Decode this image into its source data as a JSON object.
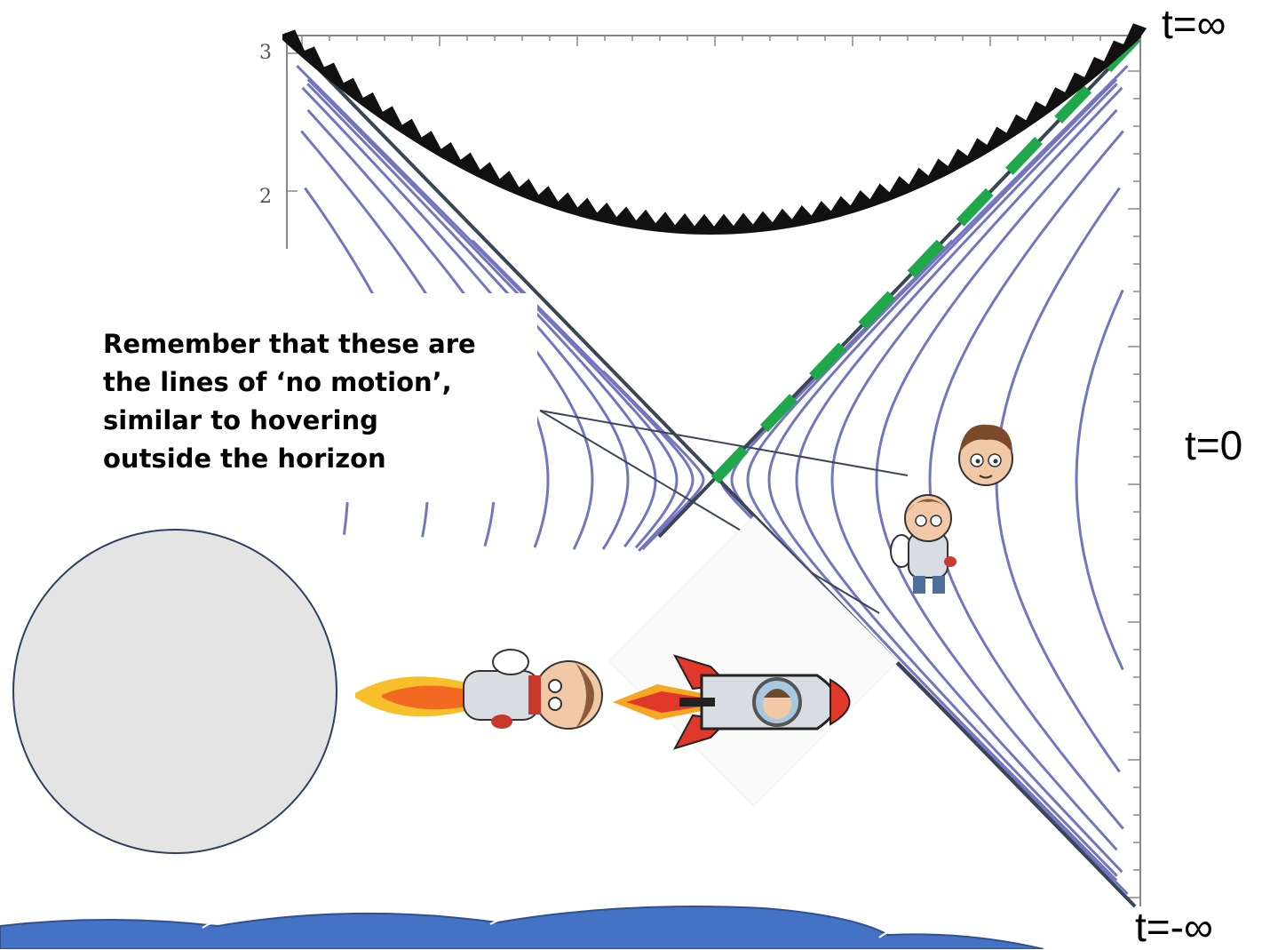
{
  "diagram": {
    "time_labels": {
      "top": "t=∞",
      "middle": "t=0",
      "bottom": "t=-∞"
    },
    "y_axis_ticks": [
      "3",
      "2"
    ],
    "note_lines": [
      "Remember that these are",
      "the lines of ‘no motion’,",
      "similar to hovering",
      "outside the horizon"
    ],
    "colors": {
      "hyperbola": "#5b5fb5",
      "horizon_line": "#3a4556",
      "geodesic_dashed": "#1fa84a",
      "singularity": "#111111",
      "planet": "#e4e4e4",
      "ground": "#4472c4"
    },
    "icons": [
      "boy-face-icon",
      "astronaut-icon",
      "jetpack-astronaut-icon",
      "rocket-icon",
      "planet-circle",
      "cloud-ground"
    ]
  }
}
